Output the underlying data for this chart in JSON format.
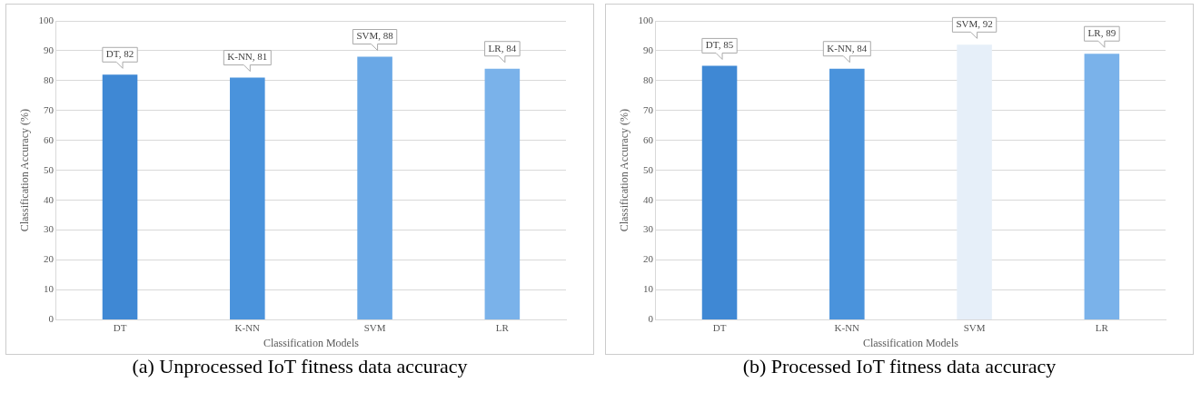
{
  "chart_data": [
    {
      "type": "bar",
      "title": "(a) Unprocessed IoT fitness data accuracy",
      "xlabel": "Classification Models",
      "ylabel": "Classification Accuracy (%)",
      "categories": [
        "DT",
        "K-NN",
        "SVM",
        "LR"
      ],
      "values": [
        82,
        81,
        88,
        84
      ],
      "colors": [
        "#3f88d4",
        "#4a93dc",
        "#6aa8e6",
        "#7ab2ea"
      ],
      "value_labels": [
        "DT, 82",
        "K-NN, 81",
        "SVM, 88",
        "LR, 84"
      ],
      "ylim": [
        0,
        100
      ],
      "yticks": [
        0,
        10,
        20,
        30,
        40,
        50,
        60,
        70,
        80,
        90,
        100
      ],
      "grid": "y"
    },
    {
      "type": "bar",
      "title": "(b) Processed IoT fitness data accuracy",
      "xlabel": "Classification Models",
      "ylabel": "Classification Accuracy (%)",
      "categories": [
        "DT",
        "K-NN",
        "SVM",
        "LR"
      ],
      "values": [
        85,
        84,
        92,
        89
      ],
      "colors": [
        "#3f88d4",
        "#4a93dc",
        "#e6eff9",
        "#7ab2ea"
      ],
      "value_labels": [
        "DT, 85",
        "K-NN, 84",
        "SVM, 92",
        "LR, 89"
      ],
      "ylim": [
        0,
        100
      ],
      "yticks": [
        0,
        10,
        20,
        30,
        40,
        50,
        60,
        70,
        80,
        90,
        100
      ],
      "grid": "y"
    }
  ]
}
